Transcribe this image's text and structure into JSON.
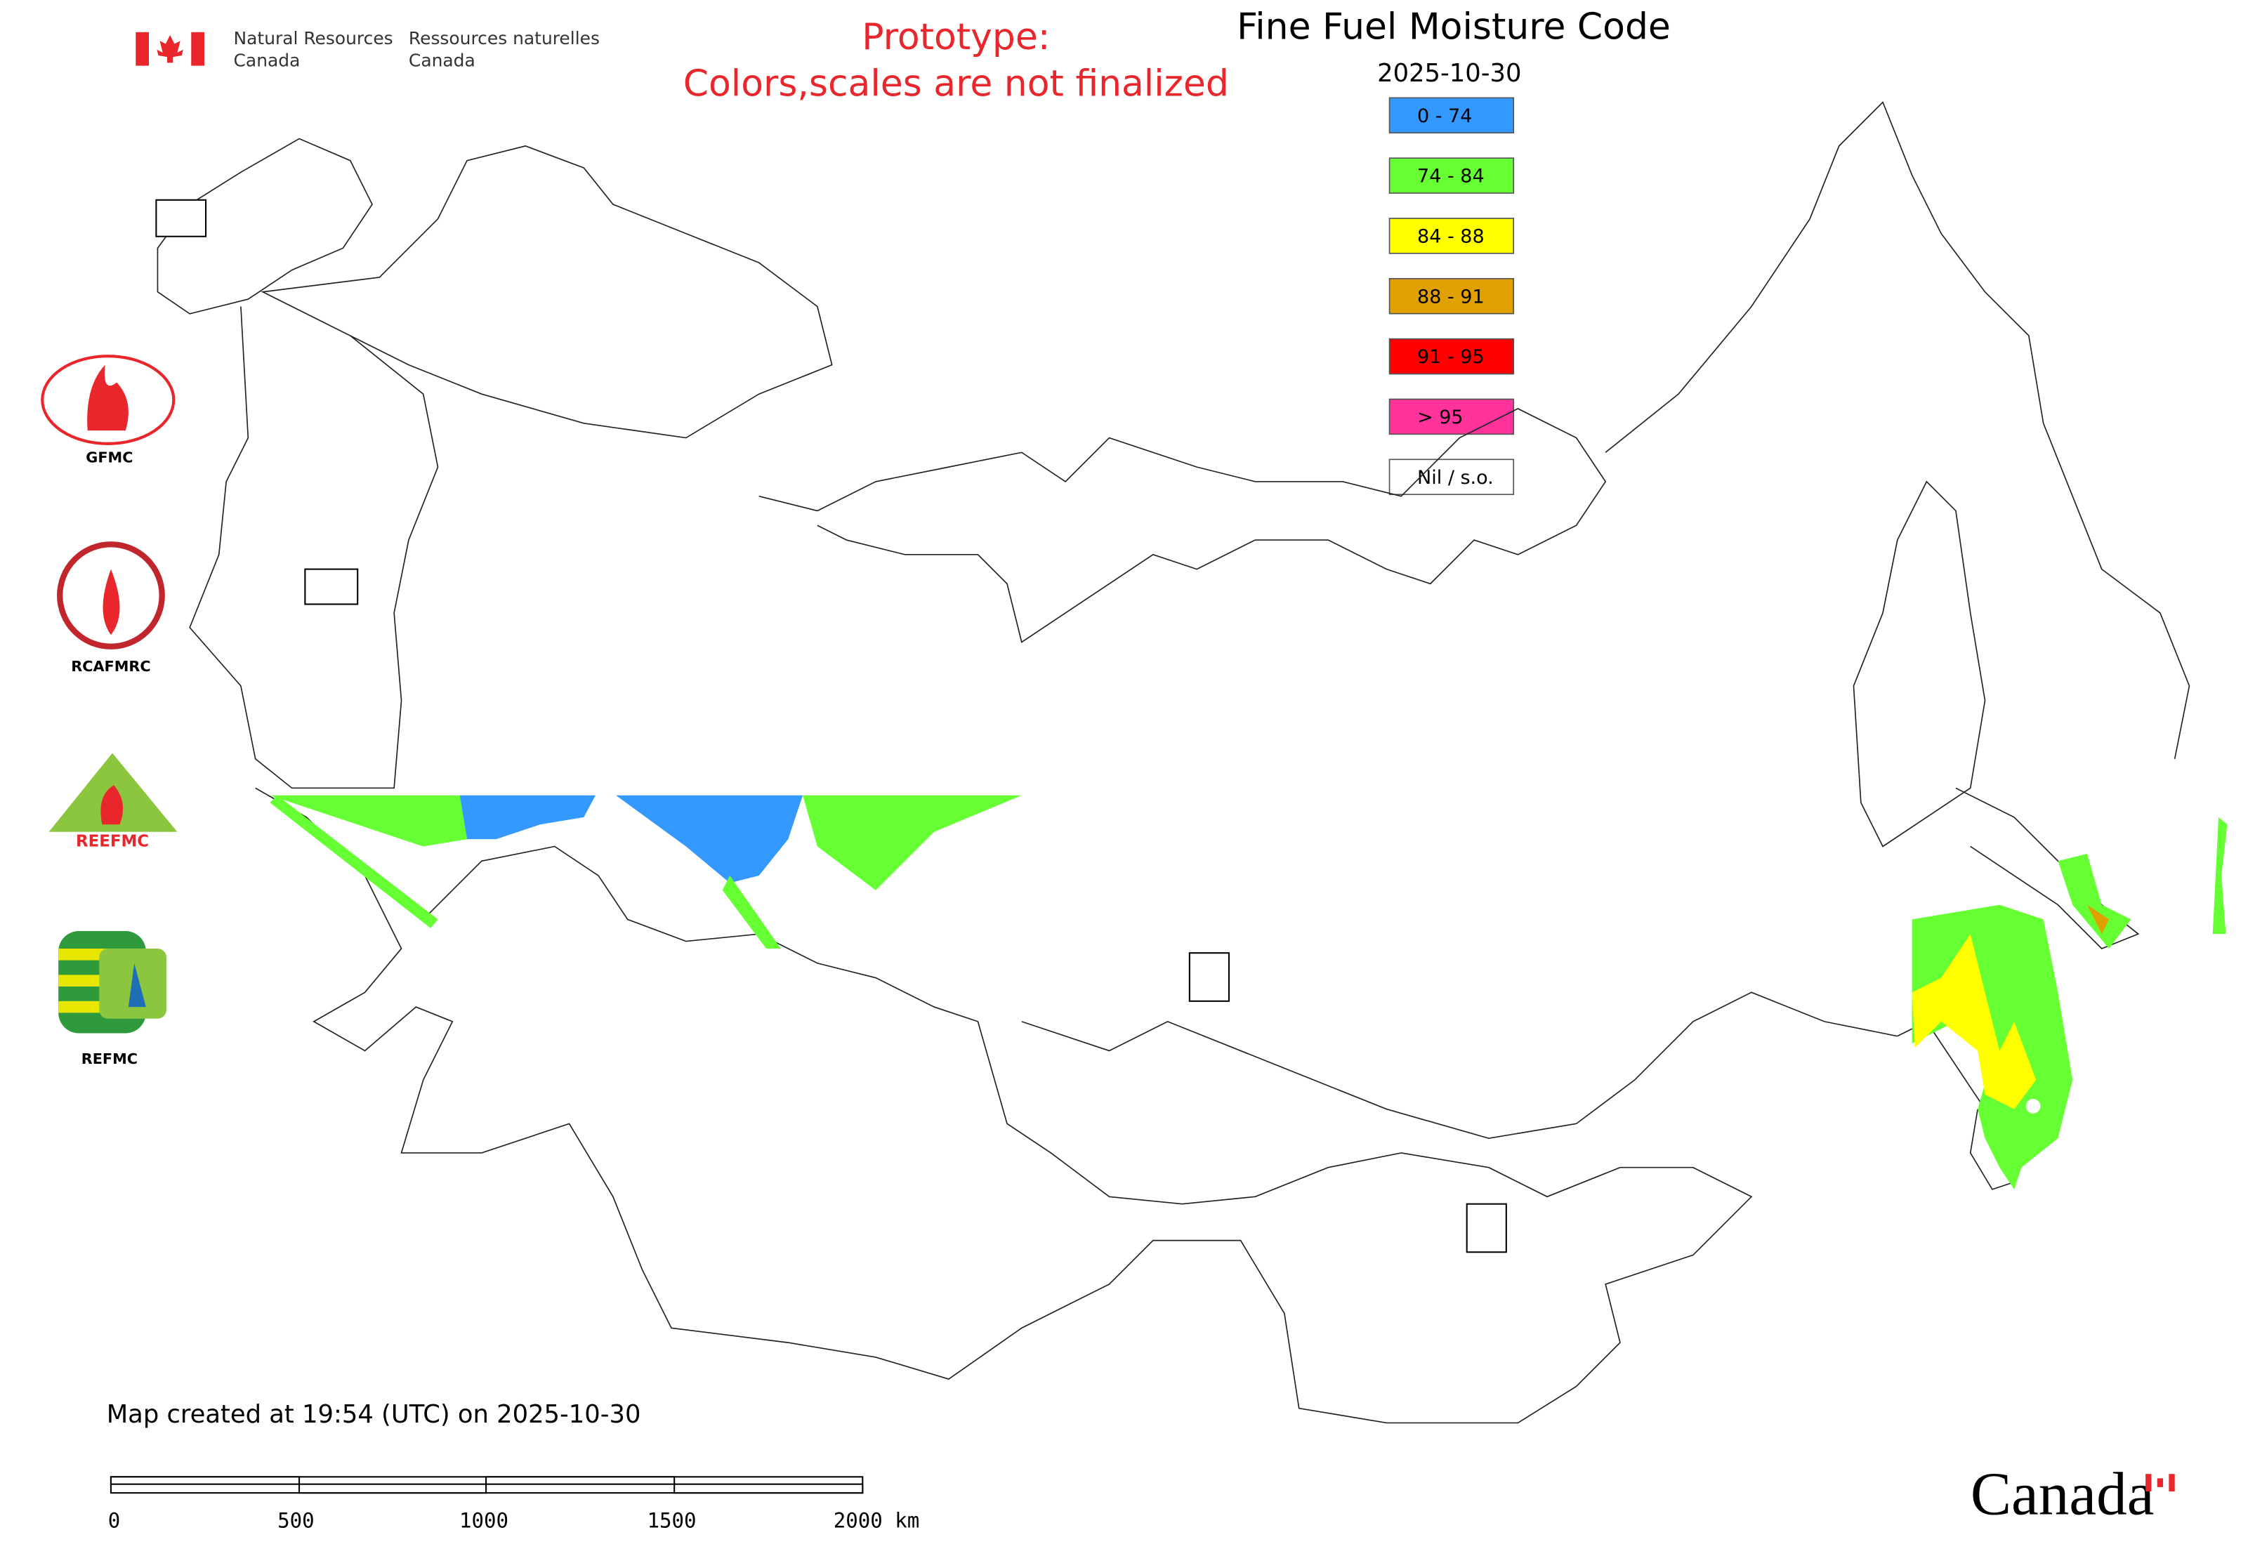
{
  "header": {
    "dept_en_1": "Natural Resources",
    "dept_en_2": "Canada",
    "dept_fr_1": "Ressources naturelles",
    "dept_fr_2": "Canada"
  },
  "notice": [
    "Prototype:",
    "Colors,scales are not finalized"
  ],
  "title": "Fine Fuel Moisture Code",
  "date": "2025-10-30",
  "legend": [
    {
      "label": "0 - 74",
      "color": "#3399ff"
    },
    {
      "label": "74 - 84",
      "color": "#66ff33"
    },
    {
      "label": "84 - 88",
      "color": "#ffff00"
    },
    {
      "label": "88 - 91",
      "color": "#e0a000"
    },
    {
      "label": "91 - 95",
      "color": "#ff0000"
    },
    {
      "label": "> 95",
      "color": "#ff3399"
    },
    {
      "label": "Nil / s.o.",
      "color": "#ffffff"
    }
  ],
  "logos": [
    "GFMC",
    "RCAFMRC",
    "REEFMC",
    "REFMC"
  ],
  "footer": "Map created at 19:54 (UTC) on 2025-10-30",
  "scale_bar": [
    "0",
    "500",
    "1000",
    "1500",
    "2000 km"
  ],
  "wordmark": "Canada"
}
